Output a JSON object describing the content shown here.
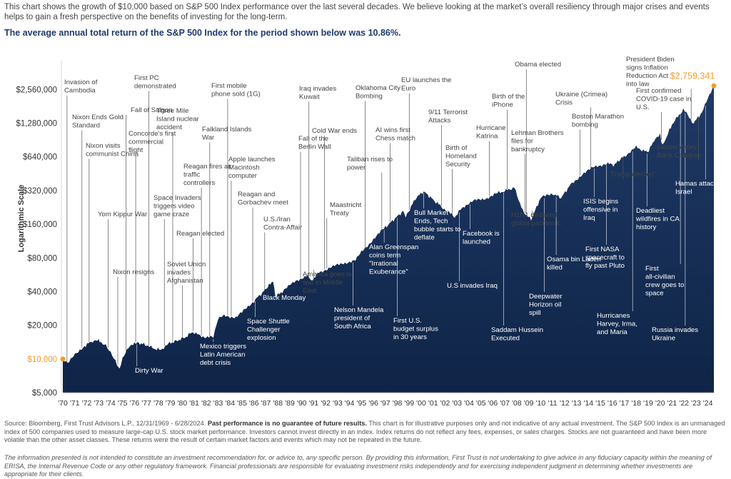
{
  "intro_text": "This chart shows the growth of $10,000 based on S&P 500 Index performance over the last several decades. We believe looking at the market’s overall resiliency through major crises and events helps to gain a fresh perspective on the benefits of investing for the long-term.",
  "headline": "The average annual total return of the S&P 500 Index for the period shown below was 10.86%.",
  "colors": {
    "area_top": "#1f3a66",
    "area_bottom": "#0f2447",
    "accent": "#f39c2a",
    "leader": "#555555"
  },
  "chart_data": {
    "type": "area",
    "ylabel": "Logarithmic Scale",
    "yscale": "log",
    "ylim": [
      5000,
      4000000
    ],
    "y_ticks": [
      5000,
      10000,
      20000,
      40000,
      80000,
      160000,
      320000,
      640000,
      1280000,
      2560000
    ],
    "y_tick_labels": [
      "$5,000",
      "$10,000",
      "$20,000",
      "$40,000",
      "$80,000",
      "$160,000",
      "$320,000",
      "$640,000",
      "$1,280,000",
      "$2,560,000"
    ],
    "highlight_tick": "$10,000",
    "x_ticks": [
      1970,
      1971,
      1972,
      1973,
      1974,
      1975,
      1976,
      1977,
      1978,
      1979,
      1980,
      1981,
      1982,
      1983,
      1984,
      1985,
      1986,
      1987,
      1988,
      1989,
      1990,
      1991,
      1992,
      1993,
      1994,
      1995,
      1996,
      1997,
      1998,
      1999,
      2000,
      2001,
      2002,
      2003,
      2004,
      2005,
      2006,
      2007,
      2008,
      2009,
      2010,
      2011,
      2012,
      2013,
      2014,
      2015,
      2016,
      2017,
      2018,
      2019,
      2020,
      2021,
      2022,
      2023,
      2024
    ],
    "x_tick_labels": [
      "'70",
      "'71",
      "'72",
      "'73",
      "'74",
      "'75",
      "'76",
      "'77",
      "'78",
      "'79",
      "'80",
      "'81",
      "'82",
      "'83",
      "'84",
      "'85",
      "'86",
      "'87",
      "'88",
      "'89",
      "'90",
      "'91",
      "'92",
      "'93",
      "'94",
      "'95",
      "'96",
      "'97",
      "'98",
      "'99",
      "'00",
      "'01",
      "'02",
      "'03",
      "'04",
      "'05",
      "'06",
      "'07",
      "'08",
      "'09",
      "'10",
      "'11",
      "'12",
      "'13",
      "'14",
      "'15",
      "'16",
      "'17",
      "'18",
      "'19",
      "'20",
      "'21",
      "'22",
      "'23",
      "'24"
    ],
    "x": [
      1970.0,
      1970.4,
      1970.9,
      1971.3,
      1971.8,
      1972.5,
      1972.9,
      1973.2,
      1973.6,
      1974.0,
      1974.4,
      1974.75,
      1975.0,
      1975.5,
      1976.0,
      1976.9,
      1977.5,
      1978.2,
      1978.7,
      1979.5,
      1980.2,
      1980.9,
      1981.5,
      1982.6,
      1983.0,
      1983.5,
      1984.5,
      1985.0,
      1986.0,
      1986.7,
      1987.6,
      1987.8,
      1988.5,
      1989.5,
      1990.5,
      1990.8,
      1991.5,
      1992.5,
      1993.5,
      1994.5,
      1995.0,
      1996.0,
      1997.0,
      1998.5,
      1998.7,
      1999.5,
      2000.2,
      2001.0,
      2001.7,
      2002.8,
      2003.5,
      2004.5,
      2005.5,
      2006.5,
      2007.8,
      2008.5,
      2009.2,
      2010.0,
      2011.0,
      2011.7,
      2012.5,
      2013.5,
      2014.5,
      2015.5,
      2016.1,
      2017.0,
      2018.0,
      2018.95,
      2019.5,
      2020.0,
      2020.2,
      2021.0,
      2021.95,
      2022.8,
      2023.5,
      2024.5
    ],
    "y": [
      10000,
      9000,
      10800,
      11500,
      13000,
      14500,
      15000,
      14000,
      13500,
      11500,
      9500,
      8200,
      10000,
      12500,
      14000,
      13500,
      12500,
      12000,
      13500,
      14500,
      15500,
      17500,
      16000,
      15500,
      22500,
      24500,
      23500,
      26000,
      33000,
      39000,
      50000,
      36000,
      41000,
      50000,
      56000,
      50000,
      60000,
      66000,
      72000,
      76000,
      90000,
      118000,
      150000,
      210000,
      185000,
      270000,
      315000,
      265000,
      230000,
      185000,
      230000,
      260000,
      275000,
      305000,
      340000,
      210000,
      175000,
      275000,
      300000,
      275000,
      360000,
      450000,
      520000,
      560000,
      540000,
      650000,
      780000,
      700000,
      900000,
      1000000,
      800000,
      1250000,
      1700000,
      1280000,
      1600000,
      2759341
    ],
    "end_value_label": "$2,759,341",
    "start_value_label": "$10,000",
    "events": [
      {
        "label": "Invasion of Cambodia",
        "x": 1970.35
      },
      {
        "label": "Nixon Ends Gold Standard",
        "x": 1971.6
      },
      {
        "label": "Nixon visits communist China",
        "x": 1972.2
      },
      {
        "label": "Yom Kippur War",
        "x": 1973.8
      },
      {
        "label": "Nixon resigns",
        "x": 1974.6
      },
      {
        "label": "Fall of Saigon",
        "x": 1975.3
      },
      {
        "label": "Dirty War",
        "x": 1976.2
      },
      {
        "label": "First PC demonstrated",
        "x": 1977.2
      },
      {
        "label": "Concorde's first commercial flight",
        "x": 1976.1
      },
      {
        "label": "Space Invaders triggers video game craze",
        "x": 1978.5
      },
      {
        "label": "Three Mile Island nuclear accident",
        "x": 1979.2
      },
      {
        "label": "Reagan elected",
        "x": 1980.9
      },
      {
        "label": "Soviet Union invades Afghanistan",
        "x": 1980.0
      },
      {
        "label": "Reagan fires air traffic controllers",
        "x": 1981.6
      },
      {
        "label": "Falkland Islands War",
        "x": 1982.3
      },
      {
        "label": "Mexico triggers Latin American debt crisis",
        "x": 1982.6
      },
      {
        "label": "First mobile phone sold (1G)",
        "x": 1983.8
      },
      {
        "label": "Apple launches Macintosh computer",
        "x": 1984.1
      },
      {
        "label": "Reagan and Gorbachev meet",
        "x": 1985.9
      },
      {
        "label": "Space Shuttle Challenger explosion",
        "x": 1986.1
      },
      {
        "label": "U.S./Iran Contra-Affair",
        "x": 1986.9
      },
      {
        "label": "Black Monday",
        "x": 1987.8
      },
      {
        "label": "Fall of the Berlin Wall",
        "x": 1989.9
      },
      {
        "label": "Iraq invades Kuwait",
        "x": 1990.6
      },
      {
        "label": "America goes to war in Middle East",
        "x": 1991.0
      },
      {
        "label": "Cold War ends",
        "x": 1991.9
      },
      {
        "label": "Maastricht Treaty",
        "x": 1992.1
      },
      {
        "label": "Nelson Mandela president of South Africa",
        "x": 1994.3
      },
      {
        "label": "Oklahoma City Bombing",
        "x": 1995.3
      },
      {
        "label": "Taliban rises to power",
        "x": 1996.7
      },
      {
        "label": "Alan Greenspan coins term \"Irrational Exuberance\"",
        "x": 1996.9
      },
      {
        "label": "AI wins first Chess match",
        "x": 1997.4
      },
      {
        "label": "First U.S. budget surplus in 30 years",
        "x": 1998.0
      },
      {
        "label": "EU launches the Euro",
        "x": 1999.0
      },
      {
        "label": "Bull Market Ends, Tech bubble starts to deflate",
        "x": 2000.2
      },
      {
        "label": "9/11 Terrorist Attacks",
        "x": 2001.7
      },
      {
        "label": "Birth of Homeland Security",
        "x": 2002.6
      },
      {
        "label": "U.S invades Iraq",
        "x": 2003.2
      },
      {
        "label": "Facebook is launched",
        "x": 2004.1
      },
      {
        "label": "Hurricane Katrina",
        "x": 2005.7
      },
      {
        "label": "Saddam Hussein Executed",
        "x": 2006.9
      },
      {
        "label": "Birth of the iPhone",
        "x": 2007.2
      },
      {
        "label": "Lehman Brothers files for bankruptcy",
        "x": 2008.7
      },
      {
        "label": "Obama elected",
        "x": 2008.8
      },
      {
        "label": "H1N1 declared global pandemic",
        "x": 2009.3
      },
      {
        "label": "Deepwater Horizon oil spill",
        "x": 2010.3
      },
      {
        "label": "Osama bin Laden killed",
        "x": 2011.3
      },
      {
        "label": "Boston Marathon bombing",
        "x": 2013.3
      },
      {
        "label": "Ukraine (Crimea) Crisis",
        "x": 2014.2
      },
      {
        "label": "ISIS begins offensive in Iraq",
        "x": 2014.5
      },
      {
        "label": "First NASA spacecraft to fly past Pluto",
        "x": 2015.5
      },
      {
        "label": "Trump elected",
        "x": 2016.9
      },
      {
        "label": "Hurricanes Harvey, Irma, and Maria",
        "x": 2017.7
      },
      {
        "label": "Deadliest wildfires in CA history",
        "x": 2018.9
      },
      {
        "label": "First confirmed COVID-19 case in U.S.",
        "x": 2020.1
      },
      {
        "label": "First all-civilian crew goes to space",
        "x": 2021.7
      },
      {
        "label": "Russia invades Ukraine",
        "x": 2022.1
      },
      {
        "label": "Silicon Valley Bank Collapse",
        "x": 2023.2
      },
      {
        "label": "Hamas attacks Israel",
        "x": 2023.8
      },
      {
        "label": "President Biden signs Inflation Reduction Act into law",
        "x": 2022.6
      }
    ]
  },
  "footer": {
    "source": "Source: Bloomberg, First Trust Advisors L.P., 12/31/1969 - 6/28/2024.",
    "bold": "Past performance is no guarantee of future results.",
    "rest": "This chart is for illustrative purposes only and not indicative of any actual investment. The S&P 500 Index is an unmanaged index of 500 companies used to measure large-cap U.S. stock market performance. Investors cannot invest directly in an index. Index returns do not reflect any fees, expenses, or sales charges. Stocks are not guaranteed and have been more volatile than the other asset classes. These returns were the result of certain market factors and events which may not be repeated in the future.",
    "disclaimer": "The information presented is not intended to constitute an investment recommendation for, or advice to, any specific person. By providing this information, First Trust is not undertaking to give advice in any fiduciary capacity within the meaning of ERISA, the Internal Revenue Code or any other regulatory framework. Financial professionals are responsible for evaluating investment risks independently and for exercising independent judgment in determining whether investments are appropriate for their clients."
  }
}
